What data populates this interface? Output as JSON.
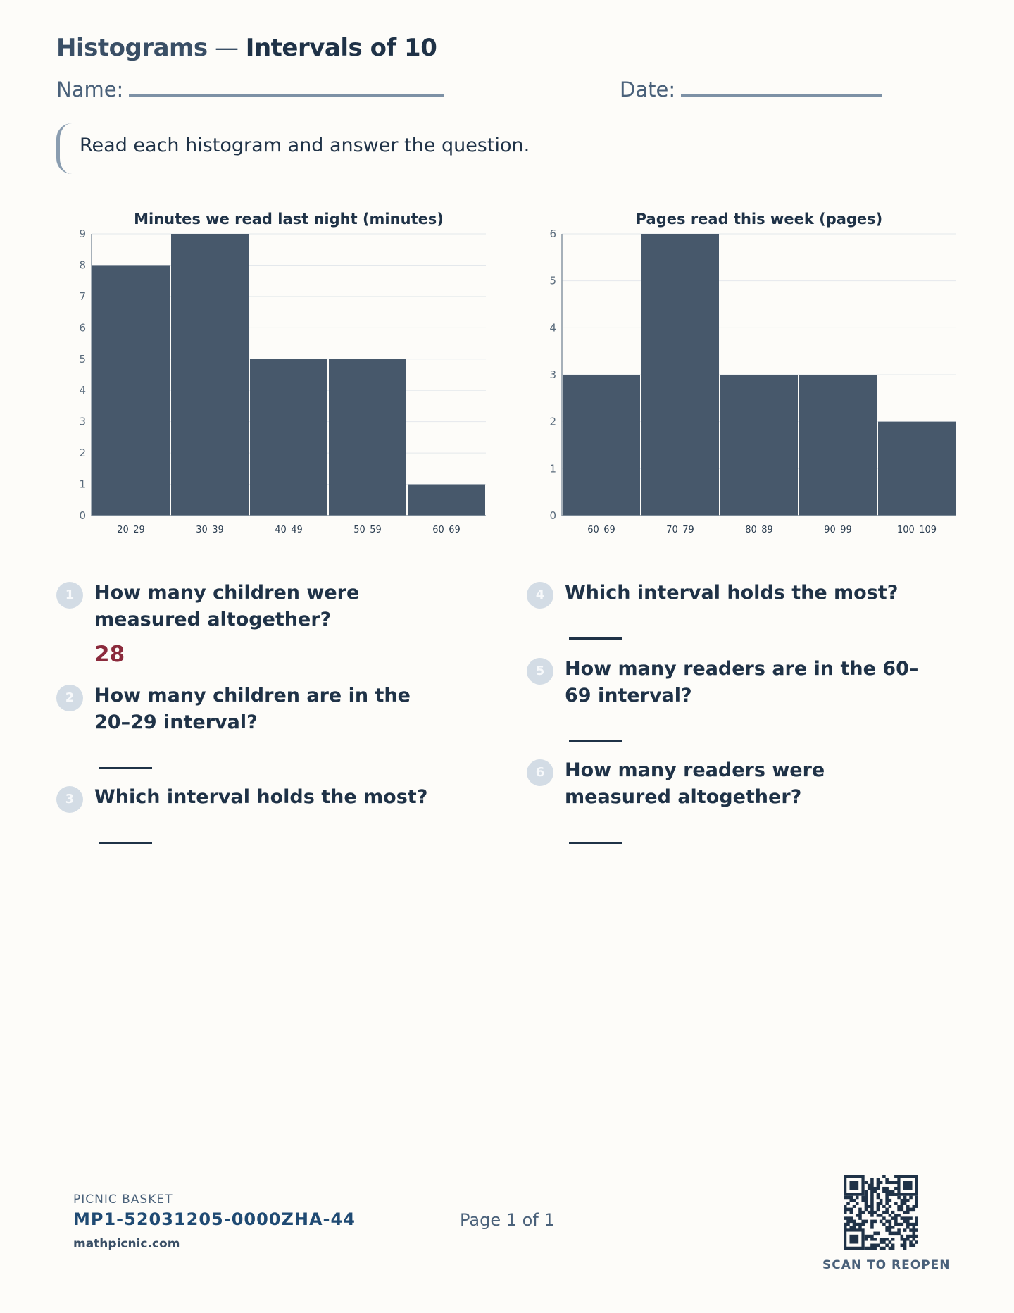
{
  "header": {
    "title_part1": "Histograms",
    "title_dash": " — ",
    "title_part2": "Intervals of 10",
    "name_label": "Name:",
    "date_label": "Date:"
  },
  "instructions": "Read each histogram and answer the question.",
  "chart_data": [
    {
      "type": "bar",
      "title": "Minutes we read last night (minutes)",
      "categories": [
        "20–29",
        "30–39",
        "40–49",
        "50–59",
        "60–69"
      ],
      "values": [
        8,
        9,
        5,
        5,
        1
      ],
      "yticks": [
        "0",
        "1",
        "2",
        "3",
        "4",
        "5",
        "6",
        "7",
        "8",
        "9"
      ],
      "ylim": [
        0,
        9
      ],
      "grid": true,
      "bar_color": "#47586b"
    },
    {
      "type": "bar",
      "title": "Pages read this week (pages)",
      "categories": [
        "60–69",
        "70–79",
        "80–89",
        "90–99",
        "100–109"
      ],
      "values": [
        3,
        6,
        3,
        3,
        2
      ],
      "yticks": [
        "0",
        "1",
        "2",
        "3",
        "4",
        "5",
        "6"
      ],
      "ylim": [
        0,
        6
      ],
      "grid": true,
      "bar_color": "#47586b"
    }
  ],
  "questions": [
    {
      "num": "1",
      "text": "How many children were measured altogether?",
      "answer": "28"
    },
    {
      "num": "2",
      "text": "How many children are in the 20–29 interval?"
    },
    {
      "num": "3",
      "text": "Which interval holds the most?"
    },
    {
      "num": "4",
      "text": "Which interval holds the most?"
    },
    {
      "num": "5",
      "text": "How many readers are in the 60–69 interval?"
    },
    {
      "num": "6",
      "text": "How many readers were measured altogether?"
    }
  ],
  "footer": {
    "brand": "PICNIC BASKET",
    "code": "MP1-52031205-0000ZHA-44",
    "site": "mathpicnic.com",
    "page": "Page 1 of 1",
    "qr_caption": "SCAN TO REOPEN"
  },
  "colors": {
    "ink": "#1f3247",
    "muted": "#4a617a",
    "bar": "#47586b",
    "answer": "#8b2a3c",
    "badge": "#d3dce5"
  }
}
